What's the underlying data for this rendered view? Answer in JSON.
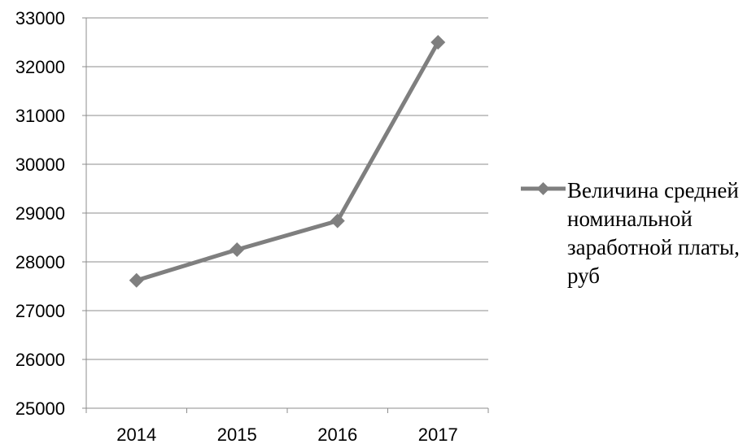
{
  "chart_data": {
    "type": "line",
    "categories": [
      "2014",
      "2015",
      "2016",
      "2017"
    ],
    "series": [
      {
        "name": "Величина средней номинальной заработной платы, руб",
        "values": [
          27620,
          28250,
          28840,
          32500
        ],
        "color": "#7f7f7f",
        "marker": "diamond"
      }
    ],
    "ylim": [
      25000,
      33000
    ],
    "yticks": [
      25000,
      26000,
      27000,
      28000,
      29000,
      30000,
      31000,
      32000,
      33000
    ],
    "grid": true,
    "legend_position": "right",
    "legend_lines": [
      "Величина средней",
      "номинальной",
      "заработной платы,",
      "руб"
    ]
  }
}
